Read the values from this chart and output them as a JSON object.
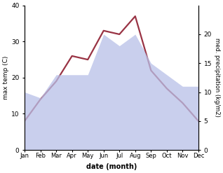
{
  "months": [
    "Jan",
    "Feb",
    "Mar",
    "Apr",
    "May",
    "Jun",
    "Jul",
    "Aug",
    "Sep",
    "Oct",
    "Nov",
    "Dec"
  ],
  "temp": [
    8,
    14,
    19,
    26,
    25,
    33,
    32,
    37,
    22,
    17,
    13,
    8
  ],
  "precip_right": [
    10,
    9,
    13,
    13,
    13,
    20,
    18,
    20,
    15,
    13,
    11,
    11
  ],
  "temp_color": "#993344",
  "precip_fill_color": "#b8c0e8",
  "precip_alpha": 0.75,
  "xlabel": "date (month)",
  "ylabel_left": "max temp (C)",
  "ylabel_right": "med. precipitation (kg/m2)",
  "ylim_left": [
    0,
    40
  ],
  "ylim_right": [
    0,
    25
  ],
  "yticks_left": [
    0,
    10,
    20,
    30,
    40
  ],
  "yticks_right": [
    0,
    5,
    10,
    15,
    20
  ],
  "background_color": "#ffffff",
  "temp_linewidth": 1.6
}
